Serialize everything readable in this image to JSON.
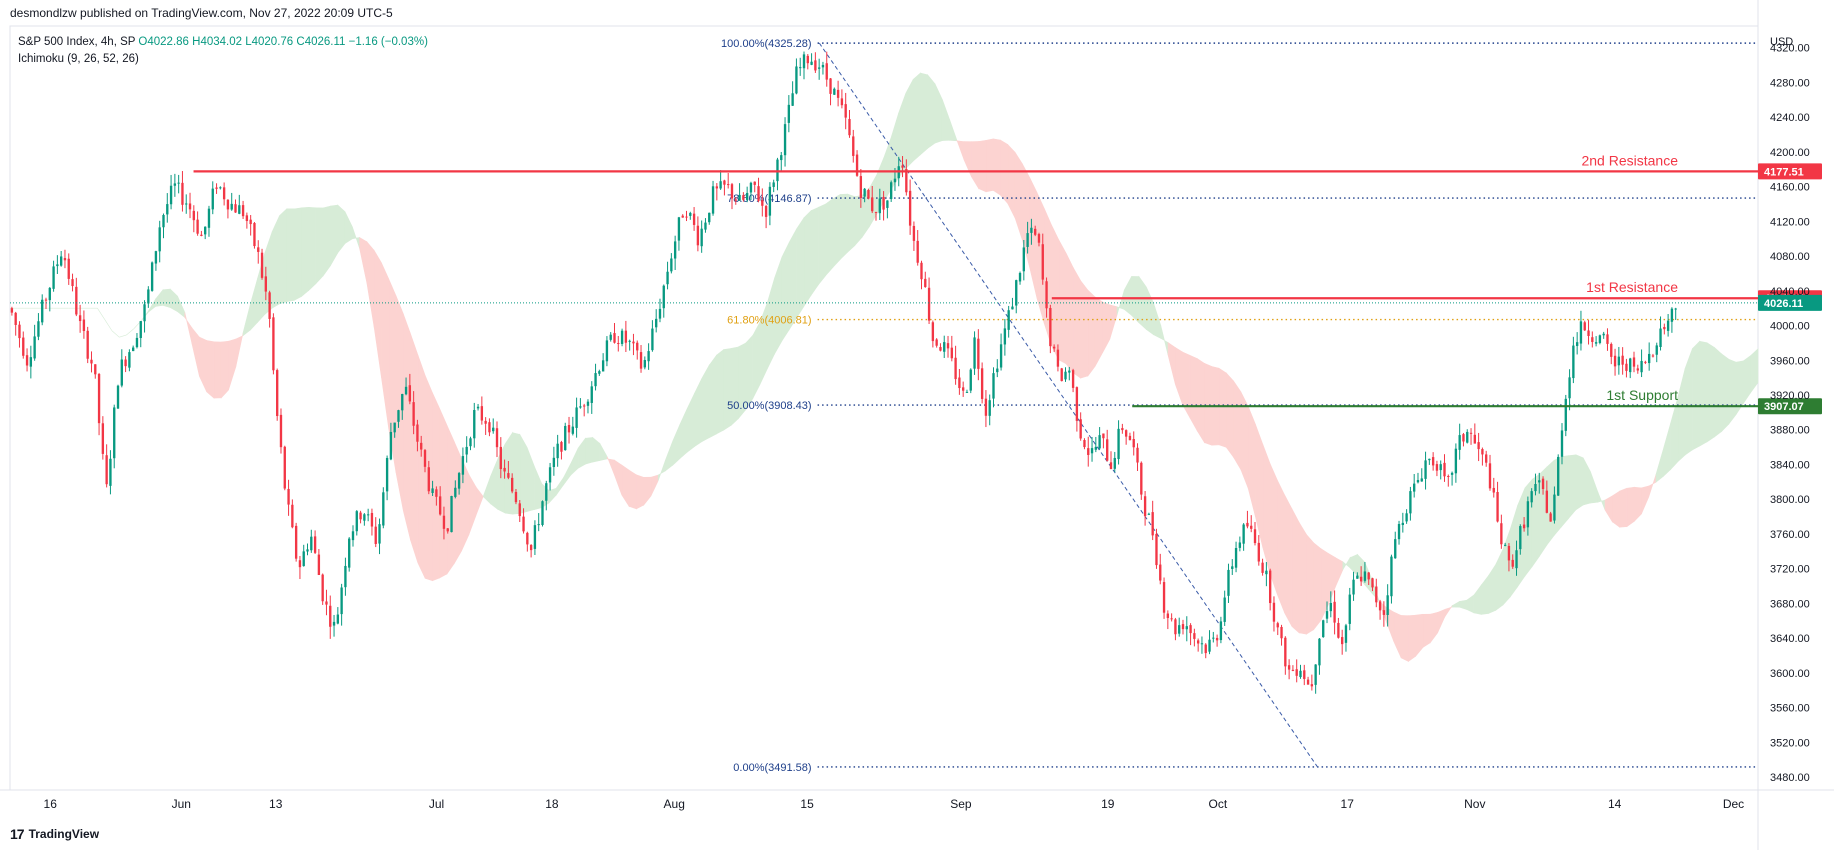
{
  "header": {
    "published": "desmondlzw published on TradingView.com, Nov 27, 2022 20:09 UTC-5"
  },
  "legend": {
    "symbol": "S&P 500 Index, 4h, SP",
    "open": "O4022.86",
    "high": "H4034.02",
    "low": "L4020.76",
    "close": "C4026.11",
    "change": "−1.16 (−0.03%)",
    "indicator": "Ichimoku (9, 26, 52, 26)"
  },
  "footer": {
    "brand": "TradingView",
    "logo_mark": "17"
  },
  "colors": {
    "up": "#089981",
    "down": "#f23645",
    "resistance": "#f23645",
    "support": "#2e7d32",
    "fib": "#1e3f8a",
    "fib618": "#e0a012",
    "cloud_bear": "#fcd3d1",
    "cloud_bull": "#d7ecd7"
  },
  "chart_data": {
    "type": "candlestick",
    "currency_label": "USD",
    "ylim": [
      3465,
      4345
    ],
    "y_ticks": [
      4320,
      4280,
      4240,
      4200,
      4160,
      4120,
      4080,
      4040,
      4000,
      3960,
      3920,
      3880,
      3840,
      3800,
      3760,
      3720,
      3680,
      3640,
      3600,
      3560,
      3520,
      3480
    ],
    "y_tick_labels": [
      "4320.00",
      "4280.00",
      "4240.00",
      "4200.00",
      "4160.00",
      "4120.00",
      "4080.00",
      "4040.00",
      "4000.00",
      "3960.00",
      "3920.00",
      "3880.00",
      "3840.00",
      "3800.00",
      "3760.00",
      "3720.00",
      "3680.00",
      "3640.00",
      "3600.00",
      "3560.00",
      "3520.00",
      "3480.00"
    ],
    "x_ticks": [
      {
        "label": "16",
        "pos": 0.023
      },
      {
        "label": "Jun",
        "pos": 0.098
      },
      {
        "label": "13",
        "pos": 0.152
      },
      {
        "label": "Jul",
        "pos": 0.244
      },
      {
        "label": "18",
        "pos": 0.31
      },
      {
        "label": "Aug",
        "pos": 0.38
      },
      {
        "label": "15",
        "pos": 0.456
      },
      {
        "label": "Sep",
        "pos": 0.544
      },
      {
        "label": "19",
        "pos": 0.628
      },
      {
        "label": "Oct",
        "pos": 0.691
      },
      {
        "label": "17",
        "pos": 0.765
      },
      {
        "label": "Nov",
        "pos": 0.838
      },
      {
        "label": "14",
        "pos": 0.918
      },
      {
        "label": "Dec",
        "pos": 0.986
      }
    ],
    "horizontal_levels": [
      {
        "name": "2nd Resistance",
        "value": 4177.51,
        "label": "4177.51",
        "color": "#f23645",
        "start": 0.105
      },
      {
        "name": "1st Resistance",
        "value": 4031.44,
        "label": "4031.44",
        "color": "#f23645",
        "start": 0.596
      },
      {
        "name": "1st Support",
        "value": 3907.07,
        "label": "3907.07",
        "color": "#2e7d32",
        "start": 0.642
      }
    ],
    "last_price": {
      "value": 4026.11,
      "label": "4026.11"
    },
    "fibonacci": [
      {
        "label": "100.00%(4325.28)",
        "value": 4325.28,
        "color": "#1e3f8a"
      },
      {
        "label": "78.60%(4146.87)",
        "value": 4146.87,
        "color": "#1e3f8a"
      },
      {
        "label": "61.80%(4006.81)",
        "value": 4006.81,
        "color": "#e0a012"
      },
      {
        "label": "50.00%(3908.43)",
        "value": 3908.43,
        "color": "#1e3f8a"
      },
      {
        "label": "0.00%(3491.58)",
        "value": 3491.58,
        "color": "#1e3f8a"
      }
    ],
    "fib_start": 0.462,
    "trendline": [
      [
        0.463,
        4325.28
      ],
      [
        0.748,
        3491.58
      ]
    ],
    "price_path": [
      [
        0.0,
        4020
      ],
      [
        0.01,
        3960
      ],
      [
        0.02,
        4030
      ],
      [
        0.03,
        4090
      ],
      [
        0.04,
        4000
      ],
      [
        0.048,
        3950
      ],
      [
        0.055,
        3805
      ],
      [
        0.062,
        3945
      ],
      [
        0.07,
        3980
      ],
      [
        0.078,
        4025
      ],
      [
        0.086,
        4120
      ],
      [
        0.094,
        4160
      ],
      [
        0.102,
        4140
      ],
      [
        0.11,
        4100
      ],
      [
        0.118,
        4165
      ],
      [
        0.126,
        4140
      ],
      [
        0.134,
        4130
      ],
      [
        0.142,
        4080
      ],
      [
        0.148,
        4020
      ],
      [
        0.152,
        3910
      ],
      [
        0.158,
        3800
      ],
      [
        0.165,
        3720
      ],
      [
        0.172,
        3760
      ],
      [
        0.18,
        3680
      ],
      [
        0.186,
        3650
      ],
      [
        0.194,
        3760
      ],
      [
        0.202,
        3790
      ],
      [
        0.21,
        3750
      ],
      [
        0.218,
        3880
      ],
      [
        0.226,
        3930
      ],
      [
        0.234,
        3860
      ],
      [
        0.242,
        3800
      ],
      [
        0.25,
        3770
      ],
      [
        0.258,
        3840
      ],
      [
        0.266,
        3900
      ],
      [
        0.274,
        3890
      ],
      [
        0.282,
        3830
      ],
      [
        0.29,
        3800
      ],
      [
        0.298,
        3740
      ],
      [
        0.306,
        3810
      ],
      [
        0.314,
        3860
      ],
      [
        0.322,
        3890
      ],
      [
        0.33,
        3920
      ],
      [
        0.338,
        3960
      ],
      [
        0.346,
        3990
      ],
      [
        0.354,
        3980
      ],
      [
        0.362,
        3950
      ],
      [
        0.37,
        4010
      ],
      [
        0.378,
        4080
      ],
      [
        0.386,
        4140
      ],
      [
        0.394,
        4100
      ],
      [
        0.402,
        4150
      ],
      [
        0.41,
        4160
      ],
      [
        0.418,
        4140
      ],
      [
        0.426,
        4160
      ],
      [
        0.432,
        4130
      ],
      [
        0.438,
        4180
      ],
      [
        0.444,
        4230
      ],
      [
        0.45,
        4290
      ],
      [
        0.457,
        4310
      ],
      [
        0.463,
        4300
      ],
      [
        0.47,
        4275
      ],
      [
        0.478,
        4235
      ],
      [
        0.486,
        4160
      ],
      [
        0.494,
        4135
      ],
      [
        0.502,
        4145
      ],
      [
        0.51,
        4200
      ],
      [
        0.516,
        4105
      ],
      [
        0.522,
        4060
      ],
      [
        0.528,
        3985
      ],
      [
        0.534,
        3975
      ],
      [
        0.54,
        3950
      ],
      [
        0.546,
        3915
      ],
      [
        0.552,
        3985
      ],
      [
        0.558,
        3900
      ],
      [
        0.564,
        3955
      ],
      [
        0.57,
        4000
      ],
      [
        0.576,
        4050
      ],
      [
        0.582,
        4105
      ],
      [
        0.588,
        4100
      ],
      [
        0.594,
        3995
      ],
      [
        0.6,
        3940
      ],
      [
        0.606,
        3950
      ],
      [
        0.612,
        3880
      ],
      [
        0.618,
        3850
      ],
      [
        0.624,
        3870
      ],
      [
        0.63,
        3840
      ],
      [
        0.636,
        3885
      ],
      [
        0.642,
        3865
      ],
      [
        0.648,
        3800
      ],
      [
        0.654,
        3760
      ],
      [
        0.66,
        3680
      ],
      [
        0.666,
        3650
      ],
      [
        0.672,
        3660
      ],
      [
        0.678,
        3640
      ],
      [
        0.684,
        3630
      ],
      [
        0.69,
        3640
      ],
      [
        0.696,
        3700
      ],
      [
        0.702,
        3750
      ],
      [
        0.708,
        3770
      ],
      [
        0.714,
        3740
      ],
      [
        0.72,
        3700
      ],
      [
        0.726,
        3640
      ],
      [
        0.732,
        3600
      ],
      [
        0.738,
        3610
      ],
      [
        0.744,
        3580
      ],
      [
        0.75,
        3660
      ],
      [
        0.756,
        3680
      ],
      [
        0.762,
        3630
      ],
      [
        0.768,
        3700
      ],
      [
        0.774,
        3715
      ],
      [
        0.78,
        3690
      ],
      [
        0.786,
        3670
      ],
      [
        0.792,
        3750
      ],
      [
        0.798,
        3790
      ],
      [
        0.804,
        3815
      ],
      [
        0.81,
        3845
      ],
      [
        0.816,
        3845
      ],
      [
        0.822,
        3810
      ],
      [
        0.828,
        3860
      ],
      [
        0.834,
        3880
      ],
      [
        0.84,
        3855
      ],
      [
        0.846,
        3830
      ],
      [
        0.852,
        3760
      ],
      [
        0.858,
        3720
      ],
      [
        0.864,
        3760
      ],
      [
        0.87,
        3805
      ],
      [
        0.876,
        3815
      ],
      [
        0.882,
        3770
      ],
      [
        0.888,
        3890
      ],
      [
        0.894,
        3975
      ],
      [
        0.9,
        4000
      ],
      [
        0.906,
        3990
      ],
      [
        0.912,
        3980
      ],
      [
        0.918,
        3955
      ],
      [
        0.924,
        3960
      ],
      [
        0.93,
        3945
      ],
      [
        0.936,
        3960
      ],
      [
        0.942,
        3985
      ],
      [
        0.948,
        4005
      ],
      [
        0.954,
        4026
      ]
    ]
  }
}
